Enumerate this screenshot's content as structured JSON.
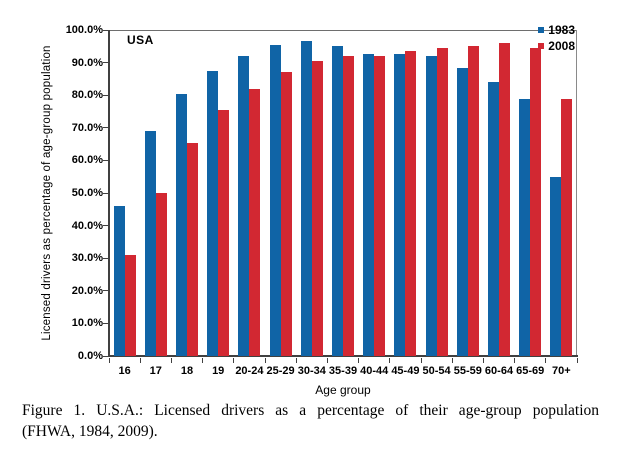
{
  "chart_data": {
    "type": "bar",
    "title": "",
    "region_label": "USA",
    "categories": [
      "16",
      "17",
      "18",
      "19",
      "20-24",
      "25-29",
      "30-34",
      "35-39",
      "40-44",
      "45-49",
      "50-54",
      "55-59",
      "60-64",
      "65-69",
      "70+"
    ],
    "series": [
      {
        "name": "1983",
        "color": "#1064A6",
        "values": [
          46,
          69,
          80.5,
          87.5,
          92,
          95.5,
          96.5,
          95,
          92.5,
          92.5,
          92,
          88.5,
          84,
          79,
          55
        ]
      },
      {
        "name": "2008",
        "color": "#D22832",
        "values": [
          31,
          50,
          65.5,
          75.5,
          82,
          87,
          90.5,
          92,
          92,
          93.5,
          94.5,
          95,
          96,
          94.5,
          79
        ]
      }
    ],
    "xlabel": "Age group",
    "ylabel": "Licensed drivers as percentage of age-group population",
    "ylim": [
      0,
      100
    ],
    "ytick_step": 10,
    "ytick_labels": [
      "0.0%",
      "10.0%",
      "20.0%",
      "30.0%",
      "40.0%",
      "50.0%",
      "60.0%",
      "70.0%",
      "80.0%",
      "90.0%",
      "100.0%"
    ],
    "grid": false,
    "legend_position": "top-right-inside"
  },
  "caption": {
    "line1": "Figure 1.  U.S.A.: Licensed drivers as a percentage of their age-group population",
    "line2": "(FHWA, 1984, 2009)."
  }
}
